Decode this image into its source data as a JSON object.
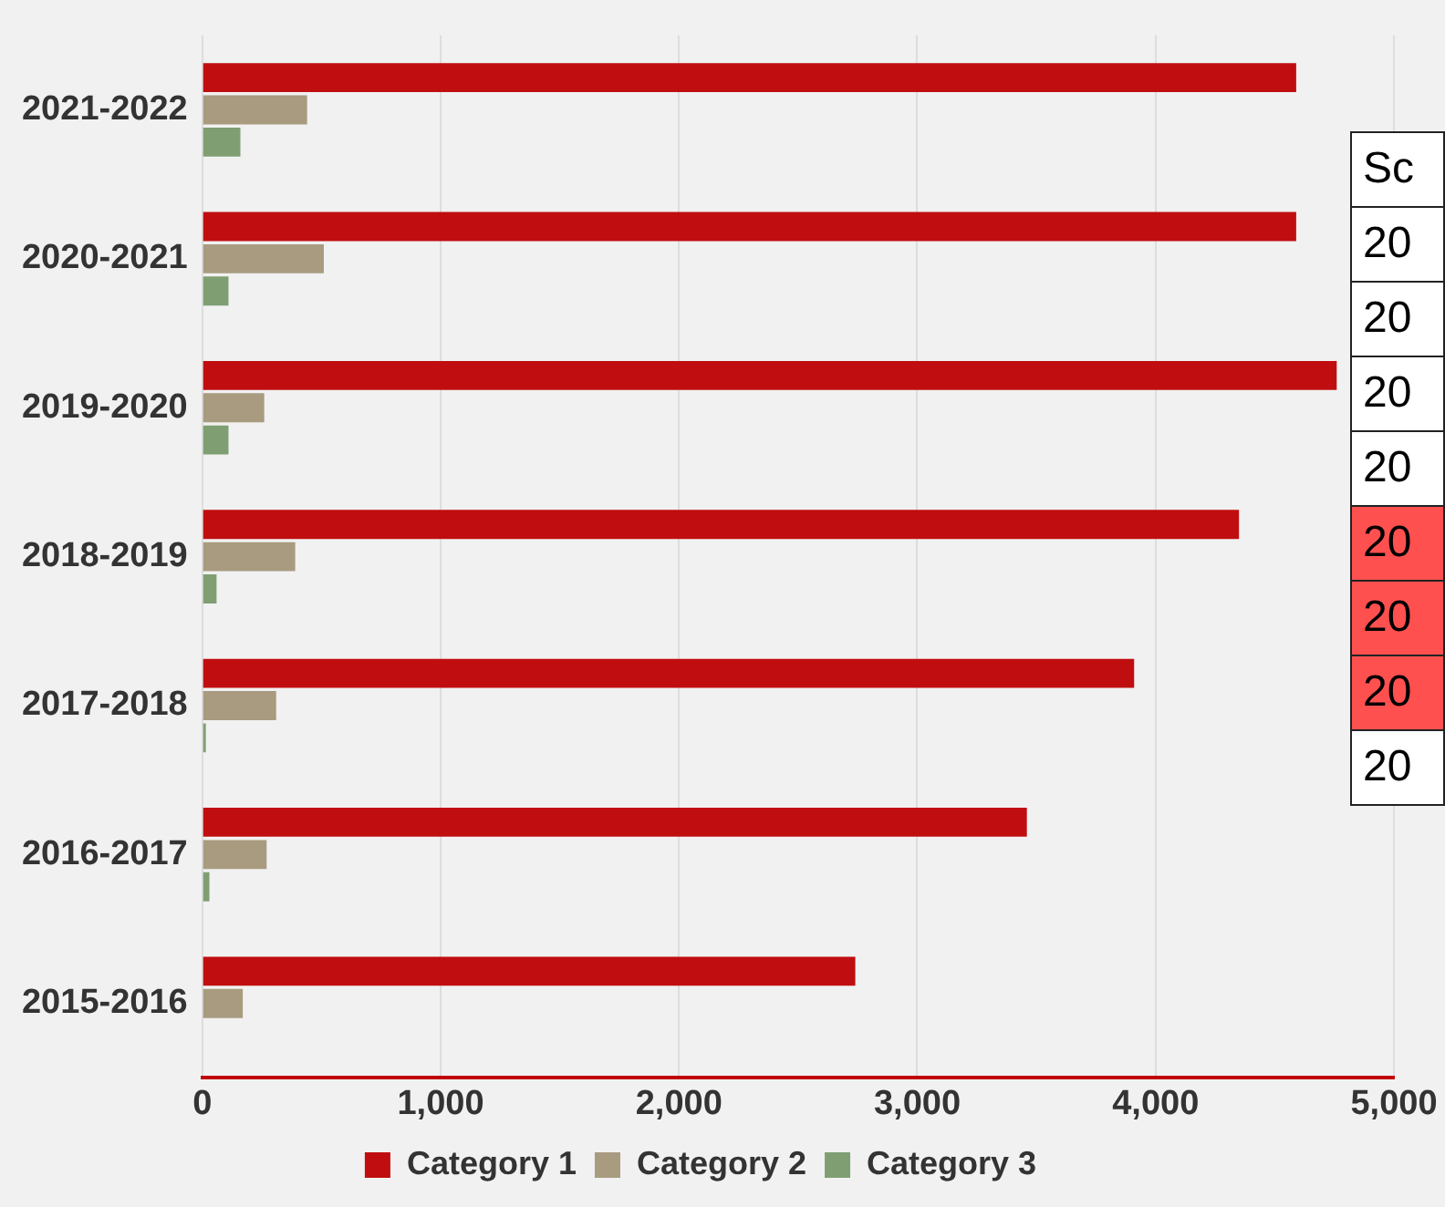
{
  "chart_data": {
    "type": "bar",
    "orientation": "horizontal",
    "categories": [
      "2021-2022",
      "2020-2021",
      "2019-2020",
      "2018-2019",
      "2017-2018",
      "2016-2017",
      "2015-2016"
    ],
    "series": [
      {
        "name": "Category 1",
        "color": "#c00e10",
        "values": [
          4590,
          4590,
          4760,
          4350,
          3910,
          3460,
          2740
        ]
      },
      {
        "name": "Category 2",
        "color": "#a89b80",
        "values": [
          440,
          510,
          260,
          390,
          310,
          270,
          170
        ]
      },
      {
        "name": "Category 3",
        "color": "#7f9f73",
        "values": [
          160,
          110,
          110,
          60,
          15,
          30,
          0
        ]
      }
    ],
    "xlim": [
      0,
      5000
    ],
    "xticks": [
      {
        "value": 0,
        "label": "0"
      },
      {
        "value": 1000,
        "label": "1,000"
      },
      {
        "value": 2000,
        "label": "2,000"
      },
      {
        "value": 3000,
        "label": "3,000"
      },
      {
        "value": 4000,
        "label": "4,000"
      },
      {
        "value": 5000,
        "label": "5,000"
      }
    ],
    "grid": "x",
    "legend": "bottom",
    "annotations": [
      "Sc",
      "20",
      "20",
      "20",
      "20",
      "20",
      "20",
      "20",
      "20"
    ]
  }
}
